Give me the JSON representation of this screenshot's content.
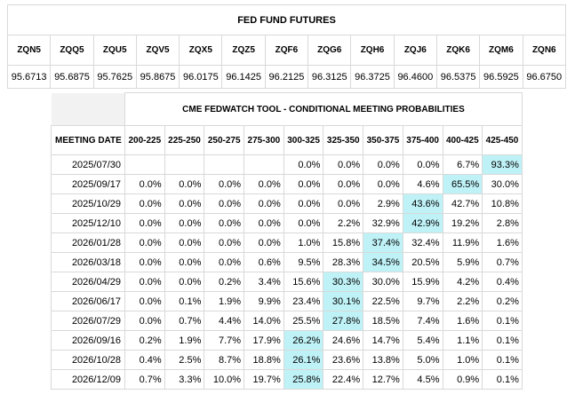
{
  "futures": {
    "title": "FED FUND FUTURES",
    "contracts": [
      {
        "code": "ZQN5",
        "price": "95.6713"
      },
      {
        "code": "ZQQ5",
        "price": "95.6875"
      },
      {
        "code": "ZQU5",
        "price": "95.7625"
      },
      {
        "code": "ZQV5",
        "price": "95.8675"
      },
      {
        "code": "ZQX5",
        "price": "96.0175"
      },
      {
        "code": "ZQZ5",
        "price": "96.1425"
      },
      {
        "code": "ZQF6",
        "price": "96.2125"
      },
      {
        "code": "ZQG6",
        "price": "96.3125"
      },
      {
        "code": "ZQH6",
        "price": "96.3725"
      },
      {
        "code": "ZQJ6",
        "price": "96.4600"
      },
      {
        "code": "ZQK6",
        "price": "96.5375"
      },
      {
        "code": "ZQM6",
        "price": "96.5925"
      },
      {
        "code": "ZQN6",
        "price": "96.6750"
      }
    ]
  },
  "fedwatch": {
    "title": "CME FEDWATCH TOOL - CONDITIONAL MEETING PROBABILITIES",
    "date_header": "MEETING DATE",
    "ranges": [
      "200-225",
      "225-250",
      "250-275",
      "275-300",
      "300-325",
      "325-350",
      "350-375",
      "375-400",
      "400-425",
      "425-450"
    ],
    "colors": {
      "max": "#bff2f7",
      "high": "#f6f7cc",
      "none": "#ffffff"
    },
    "rows": [
      {
        "date": "2025/07/30",
        "values": [
          "",
          "",
          "",
          "",
          "0.0%",
          "0.0%",
          "0.0%",
          "0.0%",
          "6.7%",
          "93.3%"
        ],
        "shade": [
          "none",
          "none",
          "none",
          "none",
          "none",
          "none",
          "none",
          "none",
          "none",
          "max"
        ]
      },
      {
        "date": "2025/09/17",
        "values": [
          "0.0%",
          "0.0%",
          "0.0%",
          "0.0%",
          "0.0%",
          "0.0%",
          "0.0%",
          "4.6%",
          "65.5%",
          "30.0%"
        ],
        "shade": [
          "none",
          "none",
          "none",
          "none",
          "none",
          "none",
          "none",
          "none",
          "max",
          "high"
        ]
      },
      {
        "date": "2025/10/29",
        "values": [
          "0.0%",
          "0.0%",
          "0.0%",
          "0.0%",
          "0.0%",
          "0.0%",
          "2.9%",
          "43.6%",
          "42.7%",
          "10.8%"
        ],
        "shade": [
          "none",
          "none",
          "none",
          "none",
          "none",
          "none",
          "none",
          "max",
          "high",
          "high"
        ]
      },
      {
        "date": "2025/12/10",
        "values": [
          "0.0%",
          "0.0%",
          "0.0%",
          "0.0%",
          "0.0%",
          "2.2%",
          "32.9%",
          "42.9%",
          "19.2%",
          "2.8%"
        ],
        "shade": [
          "none",
          "none",
          "none",
          "none",
          "none",
          "none",
          "none",
          "max",
          "high",
          "high"
        ]
      },
      {
        "date": "2026/01/28",
        "values": [
          "0.0%",
          "0.0%",
          "0.0%",
          "0.0%",
          "1.0%",
          "15.8%",
          "37.4%",
          "32.4%",
          "11.9%",
          "1.6%"
        ],
        "shade": [
          "none",
          "none",
          "none",
          "none",
          "none",
          "none",
          "max",
          "high",
          "high",
          "high"
        ]
      },
      {
        "date": "2026/03/18",
        "values": [
          "0.0%",
          "0.0%",
          "0.0%",
          "0.6%",
          "9.5%",
          "28.3%",
          "34.5%",
          "20.5%",
          "5.9%",
          "0.7%"
        ],
        "shade": [
          "none",
          "none",
          "none",
          "none",
          "none",
          "none",
          "max",
          "high",
          "high",
          "high"
        ]
      },
      {
        "date": "2026/04/29",
        "values": [
          "0.0%",
          "0.0%",
          "0.2%",
          "3.4%",
          "15.6%",
          "30.3%",
          "30.0%",
          "15.9%",
          "4.2%",
          "0.4%"
        ],
        "shade": [
          "none",
          "none",
          "none",
          "none",
          "none",
          "max",
          "high",
          "high",
          "high",
          "high"
        ]
      },
      {
        "date": "2026/06/17",
        "values": [
          "0.0%",
          "0.1%",
          "1.9%",
          "9.9%",
          "23.4%",
          "30.1%",
          "22.5%",
          "9.7%",
          "2.2%",
          "0.2%"
        ],
        "shade": [
          "none",
          "none",
          "none",
          "none",
          "none",
          "max",
          "high",
          "high",
          "high",
          "high"
        ]
      },
      {
        "date": "2026/07/29",
        "values": [
          "0.0%",
          "0.7%",
          "4.4%",
          "14.0%",
          "25.5%",
          "27.8%",
          "18.5%",
          "7.4%",
          "1.6%",
          "0.1%"
        ],
        "shade": [
          "none",
          "none",
          "none",
          "none",
          "none",
          "max",
          "high",
          "high",
          "high",
          "high"
        ]
      },
      {
        "date": "2026/09/16",
        "values": [
          "0.2%",
          "1.9%",
          "7.7%",
          "17.9%",
          "26.2%",
          "24.6%",
          "14.7%",
          "5.4%",
          "1.1%",
          "0.1%"
        ],
        "shade": [
          "none",
          "none",
          "none",
          "none",
          "max",
          "high",
          "high",
          "high",
          "high",
          "high"
        ]
      },
      {
        "date": "2026/10/28",
        "values": [
          "0.4%",
          "2.5%",
          "8.7%",
          "18.8%",
          "26.1%",
          "23.6%",
          "13.8%",
          "5.0%",
          "1.0%",
          "0.1%"
        ],
        "shade": [
          "none",
          "none",
          "none",
          "none",
          "max",
          "high",
          "high",
          "high",
          "high",
          "high"
        ]
      },
      {
        "date": "2026/12/09",
        "values": [
          "0.7%",
          "3.3%",
          "10.0%",
          "19.7%",
          "25.8%",
          "22.4%",
          "12.7%",
          "4.5%",
          "0.9%",
          "0.1%"
        ],
        "shade": [
          "none",
          "none",
          "none",
          "none",
          "max",
          "high",
          "high",
          "high",
          "high",
          "high"
        ]
      }
    ]
  }
}
